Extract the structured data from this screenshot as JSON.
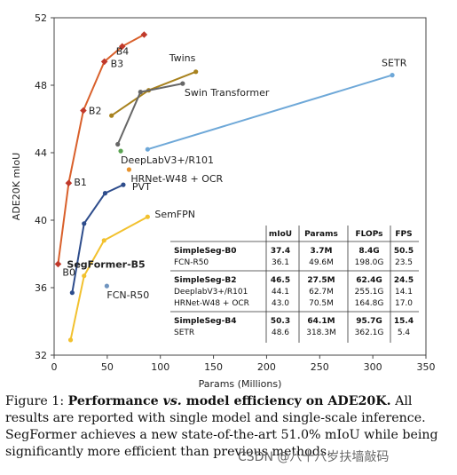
{
  "chart_data": {
    "type": "line",
    "title": "",
    "xlabel": "Params (Millions)",
    "ylabel": "ADE20K mIoU",
    "xlim": [
      0,
      350
    ],
    "ylim": [
      32,
      52
    ],
    "xticks": [
      0,
      50,
      100,
      150,
      200,
      250,
      300,
      350
    ],
    "yticks": [
      32,
      36,
      40,
      44,
      48,
      52
    ],
    "grid": false,
    "series": [
      {
        "name": "SegFormer-B5",
        "color": "#d9602b",
        "marker": "diamond",
        "x": [
          3.7,
          13.7,
          27.5,
          47.3,
          64.1,
          84.7
        ],
        "y": [
          37.4,
          42.2,
          46.5,
          49.4,
          50.3,
          51.0
        ],
        "point_labels": [
          "B0",
          "B1",
          "B2",
          "B3",
          "B4",
          ""
        ]
      },
      {
        "name": "Twins",
        "color": "#a8821e",
        "marker": "circle",
        "x": [
          54,
          89,
          133.4
        ],
        "y": [
          46.2,
          47.7,
          48.8
        ],
        "point_labels": [
          "",
          "",
          ""
        ]
      },
      {
        "name": "Swin Transformer",
        "color": "#666666",
        "marker": "circle",
        "x": [
          59.9,
          81.3,
          121
        ],
        "y": [
          44.5,
          47.6,
          48.1
        ],
        "point_labels": [
          "",
          "",
          ""
        ]
      },
      {
        "name": "SETR",
        "color": "#6ea8d8",
        "marker": "circle",
        "x": [
          88,
          318.3
        ],
        "y": [
          44.2,
          48.6
        ],
        "point_labels": [
          "",
          ""
        ]
      },
      {
        "name": "PVT",
        "color": "#2e4d8c",
        "marker": "circle",
        "x": [
          17.0,
          28.2,
          48.0,
          65.1
        ],
        "y": [
          35.7,
          39.8,
          41.6,
          42.1
        ],
        "point_labels": [
          "",
          "",
          "",
          ""
        ]
      },
      {
        "name": "SemFPN",
        "color": "#f2c12e",
        "marker": "circle",
        "x": [
          15.5,
          28.2,
          47.0,
          88.0
        ],
        "y": [
          32.9,
          36.7,
          38.8,
          40.2
        ],
        "point_labels": [
          "",
          "",
          "",
          ""
        ]
      },
      {
        "name": "DeepLabV3+/R101",
        "color": "#5aa352",
        "marker": "circle",
        "x": [
          62.7
        ],
        "y": [
          44.1
        ],
        "point_labels": [
          ""
        ]
      },
      {
        "name": "HRNet-W48 + OCR",
        "color": "#e8932c",
        "marker": "circle",
        "x": [
          70.5
        ],
        "y": [
          43.0
        ],
        "point_labels": [
          ""
        ]
      },
      {
        "name": "FCN-R50",
        "color": "#6f94bf",
        "marker": "circle",
        "x": [
          49.6
        ],
        "y": [
          36.1
        ],
        "point_labels": [
          ""
        ]
      }
    ],
    "table": {
      "headers": [
        "",
        "mIoU",
        "Params",
        "FLOPs",
        "FPS"
      ],
      "groups": [
        {
          "rows": [
            {
              "cells": [
                "SimpleSeg-B0",
                "37.4",
                "3.7M",
                "8.4G",
                "50.5"
              ],
              "bold": true
            },
            {
              "cells": [
                "FCN-R50",
                "36.1",
                "49.6M",
                "198.0G",
                "23.5"
              ],
              "bold": false
            }
          ]
        },
        {
          "rows": [
            {
              "cells": [
                "SimpleSeg-B2",
                "46.5",
                "27.5M",
                "62.4G",
                "24.5"
              ],
              "bold": true
            },
            {
              "cells": [
                "DeeplabV3+/R101",
                "44.1",
                "62.7M",
                "255.1G",
                "14.1"
              ],
              "bold": false
            },
            {
              "cells": [
                "HRNet-W48 + OCR",
                "43.0",
                "70.5M",
                "164.8G",
                "17.0"
              ],
              "bold": false
            }
          ]
        },
        {
          "rows": [
            {
              "cells": [
                "SimpleSeg-B4",
                "50.3",
                "64.1M",
                "95.7G",
                "15.4"
              ],
              "bold": true
            },
            {
              "cells": [
                "SETR",
                "48.6",
                "318.3M",
                "362.1G",
                "5.4"
              ],
              "bold": false
            }
          ]
        }
      ]
    }
  },
  "caption": {
    "prefix": "Figure 1: ",
    "bold_a": "Performance ",
    "italic": "vs.",
    "bold_b": " model efficiency on ADE20K.",
    "rest": " All results are reported with single model and single-scale inference. SegFormer achieves a new state-of-the-art 51.0% mIoU while being significantly more efficient than previous methods."
  },
  "watermark": "CSDN @八十八岁扶墙敲码"
}
